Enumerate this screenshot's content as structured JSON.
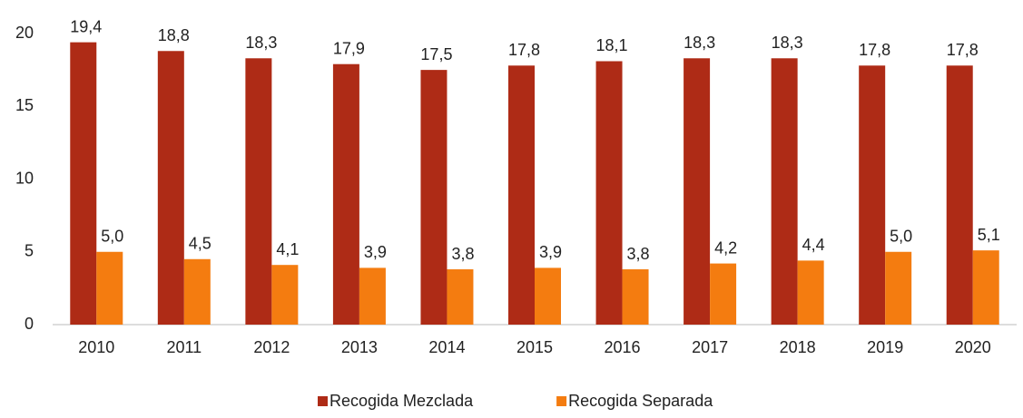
{
  "chart_data": {
    "type": "bar",
    "categories": [
      "2010",
      "2011",
      "2012",
      "2013",
      "2014",
      "2015",
      "2016",
      "2017",
      "2018",
      "2019",
      "2020"
    ],
    "series": [
      {
        "name": "Recogida Mezclada",
        "color": "#ae2b16",
        "values": [
          19.4,
          18.8,
          18.3,
          17.9,
          17.5,
          17.8,
          18.1,
          18.3,
          18.3,
          17.8,
          17.8
        ],
        "value_labels": [
          "19,4",
          "18,8",
          "18,3",
          "17,9",
          "17,5",
          "17,8",
          "18,1",
          "18,3",
          "18,3",
          "17,8",
          "17,8"
        ]
      },
      {
        "name": "Recogida Separada",
        "color": "#f47c10",
        "values": [
          5.0,
          4.5,
          4.1,
          3.9,
          3.8,
          3.9,
          3.8,
          4.2,
          4.4,
          5.0,
          5.1
        ],
        "value_labels": [
          "5,0",
          "4,5",
          "4,1",
          "3,9",
          "3,8",
          "3,9",
          "3,8",
          "4,2",
          "4,4",
          "5,0",
          "5,1"
        ]
      }
    ],
    "ylim": [
      0,
      20
    ],
    "yticks": [
      0,
      5,
      10,
      15,
      20
    ],
    "grid": false,
    "legend": "bottom"
  }
}
